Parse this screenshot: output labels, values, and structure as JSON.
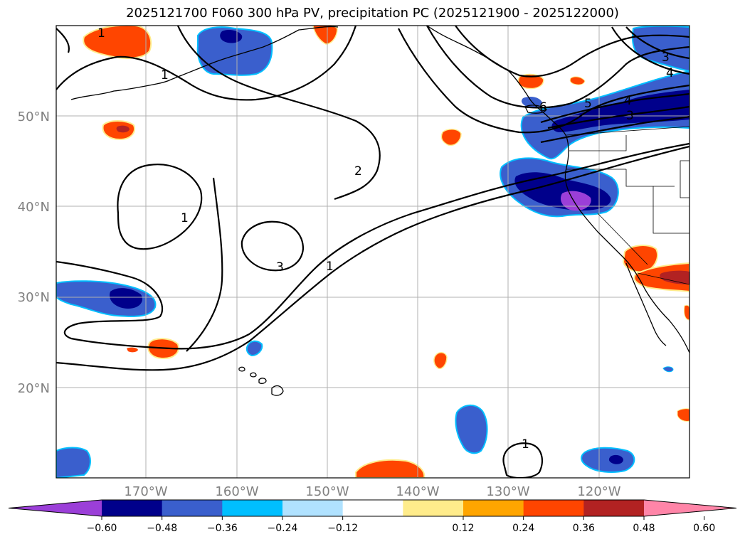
{
  "title": "2025121700 F060 300 hPa PV, precipitation PC (2025121900 - 2025122000)",
  "lat_labels": [
    "50°N",
    "40°N",
    "30°N",
    "20°N"
  ],
  "lon_labels": [
    "170°W",
    "160°W",
    "150°W",
    "140°W",
    "130°W",
    "120°W"
  ],
  "contour_labels": [
    "1",
    "1",
    "1",
    "2",
    "3",
    "1",
    "1",
    "3",
    "4",
    "5",
    "4",
    "3",
    "6"
  ],
  "colorbar": {
    "colors": [
      "#9b3fd8",
      "#00008b",
      "#3a5fcd",
      "#00bfff",
      "#b0e2ff",
      "#ffffff",
      "#ffec8b",
      "#ffa500",
      "#ff4500",
      "#b22222",
      "#ff85a8"
    ],
    "tick_labels": [
      "−0.60",
      "−0.48",
      "−0.36",
      "−0.24",
      "−0.12",
      "0.12",
      "0.24",
      "0.36",
      "0.48",
      "0.60"
    ]
  },
  "colors": {
    "gridline": "#b0b0b0",
    "contour": "#000000",
    "coast": "#000000"
  }
}
